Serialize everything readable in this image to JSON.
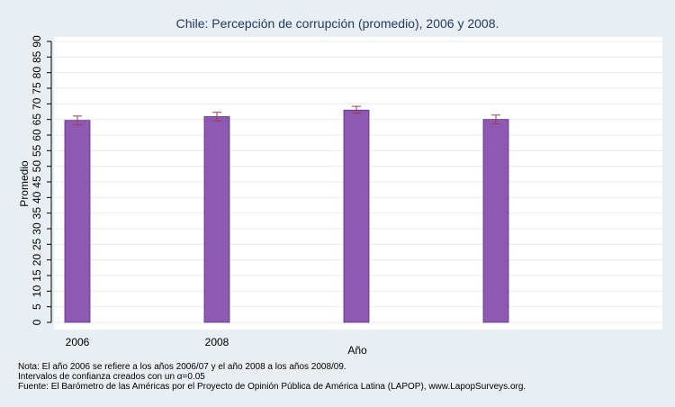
{
  "chart_data": {
    "type": "bar",
    "title": "Chile: Percepción de corrupción (promedio), 2006 y 2008.",
    "xlabel": "Año",
    "ylabel": "Promedio",
    "ylim": [
      0,
      90
    ],
    "ytick_step": 5,
    "categories": [
      "2006",
      "2008",
      "",
      ""
    ],
    "values": [
      64.7,
      65.9,
      68.0,
      65.0
    ],
    "ci_low": [
      63.3,
      64.5,
      67.0,
      63.6
    ],
    "ci_high": [
      66.1,
      67.3,
      69.2,
      66.4
    ],
    "bar_color": "#8e59b3",
    "bar_edge_color": "#5a2d7a",
    "error_color": "#a23a4a",
    "grid": true,
    "notes": [
      "Nota: El año 2006 se refiere a los años 2006/07 y el año 2008 a los años 2008/09.",
      "Intervalos de confianza creados con un α=0.05",
      "Fuente: El Barómetro de las Américas por el Proyecto de Opinión Pública de América Latina (LAPOP), www.LapopSurveys.org."
    ]
  }
}
